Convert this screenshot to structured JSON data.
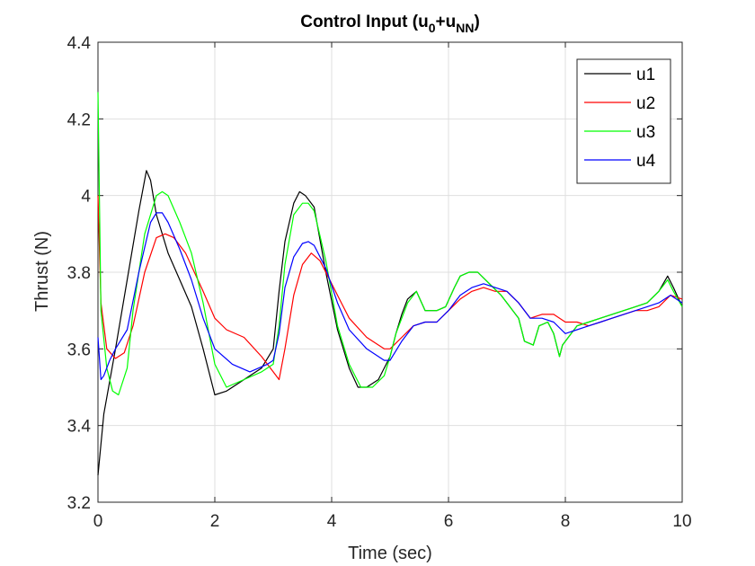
{
  "chart_data": {
    "type": "line",
    "title_parts": {
      "main": "Control Input (u",
      "sub1": "0",
      "plus": "+u",
      "sub2": "NN",
      "close": ")"
    },
    "xlabel": "Time (sec)",
    "ylabel": "Thrust (N)",
    "xlim": [
      0,
      10
    ],
    "ylim": [
      3.2,
      4.4
    ],
    "xticks": [
      "0",
      "2",
      "4",
      "6",
      "8",
      "10"
    ],
    "xtick_values": [
      0,
      2,
      4,
      6,
      8,
      10
    ],
    "yticks": [
      "3.2",
      "3.4",
      "3.6",
      "3.8",
      "4",
      "4.2",
      "4.4"
    ],
    "ytick_values": [
      3.2,
      3.4,
      3.6,
      3.8,
      4.0,
      4.2,
      4.4
    ],
    "grid": true,
    "legend_position": "top-right",
    "series": [
      {
        "name": "u1",
        "color": "#000000",
        "x": [
          0,
          0.1,
          0.3,
          0.5,
          0.7,
          0.83,
          0.9,
          1.0,
          1.2,
          1.4,
          1.6,
          1.8,
          2.0,
          2.2,
          2.5,
          2.8,
          3.0,
          3.1,
          3.2,
          3.35,
          3.45,
          3.55,
          3.7,
          3.9,
          4.1,
          4.3,
          4.45,
          4.6,
          4.8,
          5.0,
          5.1,
          5.2,
          5.3,
          5.45,
          5.6,
          5.8,
          5.95,
          6.1,
          6.2,
          6.35,
          6.5,
          6.7,
          6.9,
          7.0,
          7.1,
          7.2,
          7.3,
          7.45,
          7.55,
          7.7,
          7.8,
          7.9,
          7.95,
          8.05,
          8.2,
          8.4,
          8.6,
          8.8,
          9.0,
          9.2,
          9.4,
          9.6,
          9.75,
          9.85,
          10.0
        ],
        "values": [
          3.27,
          3.43,
          3.6,
          3.78,
          3.96,
          4.065,
          4.04,
          3.95,
          3.85,
          3.78,
          3.71,
          3.6,
          3.48,
          3.49,
          3.52,
          3.55,
          3.6,
          3.75,
          3.88,
          3.98,
          4.01,
          4.0,
          3.97,
          3.8,
          3.65,
          3.55,
          3.5,
          3.5,
          3.52,
          3.58,
          3.64,
          3.69,
          3.73,
          3.75,
          3.7,
          3.7,
          3.71,
          3.76,
          3.79,
          3.8,
          3.8,
          3.77,
          3.74,
          3.72,
          3.7,
          3.68,
          3.62,
          3.61,
          3.66,
          3.67,
          3.64,
          3.58,
          3.61,
          3.63,
          3.66,
          3.67,
          3.68,
          3.69,
          3.7,
          3.71,
          3.72,
          3.75,
          3.79,
          3.76,
          3.71
        ]
      },
      {
        "name": "u2",
        "color": "#ff0000",
        "x": [
          0,
          0.05,
          0.15,
          0.3,
          0.45,
          0.6,
          0.8,
          1.0,
          1.15,
          1.3,
          1.5,
          1.8,
          2.0,
          2.2,
          2.5,
          2.8,
          3.0,
          3.1,
          3.2,
          3.35,
          3.5,
          3.65,
          3.8,
          4.0,
          4.3,
          4.6,
          4.9,
          5.0,
          5.2,
          5.4,
          5.6,
          5.8,
          6.0,
          6.2,
          6.4,
          6.6,
          6.8,
          7.0,
          7.2,
          7.4,
          7.6,
          7.8,
          8.0,
          8.2,
          8.4,
          8.6,
          8.8,
          9.0,
          9.2,
          9.4,
          9.6,
          9.8,
          10.0
        ],
        "values": [
          4.0,
          3.72,
          3.6,
          3.575,
          3.59,
          3.66,
          3.8,
          3.89,
          3.9,
          3.89,
          3.85,
          3.75,
          3.68,
          3.65,
          3.63,
          3.58,
          3.54,
          3.52,
          3.6,
          3.74,
          3.82,
          3.85,
          3.83,
          3.77,
          3.68,
          3.63,
          3.6,
          3.6,
          3.63,
          3.66,
          3.67,
          3.67,
          3.7,
          3.73,
          3.75,
          3.76,
          3.75,
          3.75,
          3.72,
          3.68,
          3.69,
          3.69,
          3.67,
          3.67,
          3.66,
          3.67,
          3.68,
          3.69,
          3.7,
          3.7,
          3.71,
          3.74,
          3.73
        ]
      },
      {
        "name": "u3",
        "color": "#00ff00",
        "x": [
          0,
          0.05,
          0.15,
          0.25,
          0.35,
          0.5,
          0.6,
          0.8,
          1.0,
          1.1,
          1.2,
          1.4,
          1.6,
          1.8,
          2.0,
          2.2,
          2.5,
          2.8,
          3.0,
          3.1,
          3.2,
          3.35,
          3.5,
          3.6,
          3.7,
          3.9,
          4.1,
          4.3,
          4.5,
          4.7,
          4.9,
          5.0,
          5.1,
          5.2,
          5.3,
          5.45,
          5.6,
          5.8,
          5.95,
          6.1,
          6.2,
          6.35,
          6.5,
          6.7,
          6.9,
          7.0,
          7.1,
          7.2,
          7.3,
          7.45,
          7.55,
          7.7,
          7.8,
          7.9,
          7.95,
          8.05,
          8.2,
          8.4,
          8.6,
          8.8,
          9.0,
          9.2,
          9.4,
          9.6,
          9.75,
          9.85,
          10.0
        ],
        "values": [
          4.27,
          3.7,
          3.55,
          3.49,
          3.48,
          3.55,
          3.7,
          3.9,
          4.0,
          4.01,
          4.0,
          3.93,
          3.85,
          3.72,
          3.56,
          3.5,
          3.52,
          3.54,
          3.56,
          3.66,
          3.82,
          3.95,
          3.98,
          3.98,
          3.96,
          3.83,
          3.66,
          3.56,
          3.5,
          3.5,
          3.53,
          3.58,
          3.64,
          3.68,
          3.72,
          3.75,
          3.7,
          3.7,
          3.71,
          3.76,
          3.79,
          3.8,
          3.8,
          3.77,
          3.74,
          3.72,
          3.7,
          3.68,
          3.62,
          3.61,
          3.66,
          3.67,
          3.64,
          3.58,
          3.61,
          3.63,
          3.66,
          3.67,
          3.68,
          3.69,
          3.7,
          3.71,
          3.72,
          3.75,
          3.78,
          3.75,
          3.71
        ]
      },
      {
        "name": "u4",
        "color": "#0000ff",
        "x": [
          0,
          0.05,
          0.1,
          0.2,
          0.3,
          0.5,
          0.7,
          0.9,
          1.0,
          1.1,
          1.2,
          1.4,
          1.6,
          1.8,
          2.0,
          2.3,
          2.6,
          2.9,
          3.0,
          3.1,
          3.2,
          3.35,
          3.5,
          3.6,
          3.7,
          3.9,
          4.1,
          4.3,
          4.6,
          4.9,
          5.0,
          5.2,
          5.4,
          5.6,
          5.8,
          6.0,
          6.2,
          6.4,
          6.6,
          6.8,
          7.0,
          7.2,
          7.4,
          7.6,
          7.8,
          8.0,
          8.2,
          8.4,
          8.6,
          8.8,
          9.0,
          9.2,
          9.4,
          9.6,
          9.8,
          10.0
        ],
        "values": [
          3.63,
          3.52,
          3.53,
          3.57,
          3.6,
          3.65,
          3.8,
          3.93,
          3.955,
          3.955,
          3.93,
          3.86,
          3.78,
          3.68,
          3.6,
          3.56,
          3.54,
          3.56,
          3.57,
          3.64,
          3.76,
          3.84,
          3.875,
          3.88,
          3.87,
          3.81,
          3.72,
          3.65,
          3.6,
          3.57,
          3.57,
          3.62,
          3.66,
          3.67,
          3.67,
          3.7,
          3.74,
          3.76,
          3.77,
          3.76,
          3.75,
          3.72,
          3.68,
          3.68,
          3.67,
          3.64,
          3.65,
          3.66,
          3.67,
          3.68,
          3.69,
          3.7,
          3.71,
          3.72,
          3.74,
          3.72
        ]
      }
    ]
  }
}
